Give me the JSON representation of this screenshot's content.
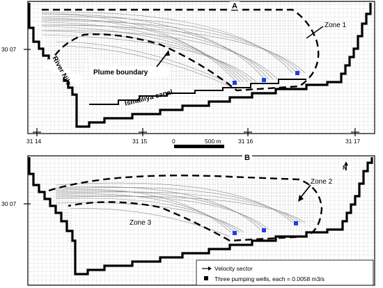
{
  "panel_a": {
    "label": "A",
    "zone": "Zone 1",
    "plume_label": "Plume boundary",
    "river_label": "River Nile",
    "canal_label": "Ismailiya canal",
    "lat_label": "30 07"
  },
  "panel_b": {
    "label": "B",
    "zone2": "Zone 2",
    "zone3": "Zone 3",
    "lat_label": "30 07",
    "north_label": "N"
  },
  "longitudes": [
    "31 14",
    "31 15",
    "31 16",
    "31 17"
  ],
  "scale": {
    "zero": "0",
    "dist": "500 m"
  },
  "legend": {
    "velocity": "Velocity sector",
    "wells": "Three pumping wells, each = 0.0058 m3/s"
  },
  "colors": {
    "well": "#1f3fe0",
    "line": "#000000",
    "flow": "#8a8a8a",
    "grid": "#bdbdbd"
  }
}
